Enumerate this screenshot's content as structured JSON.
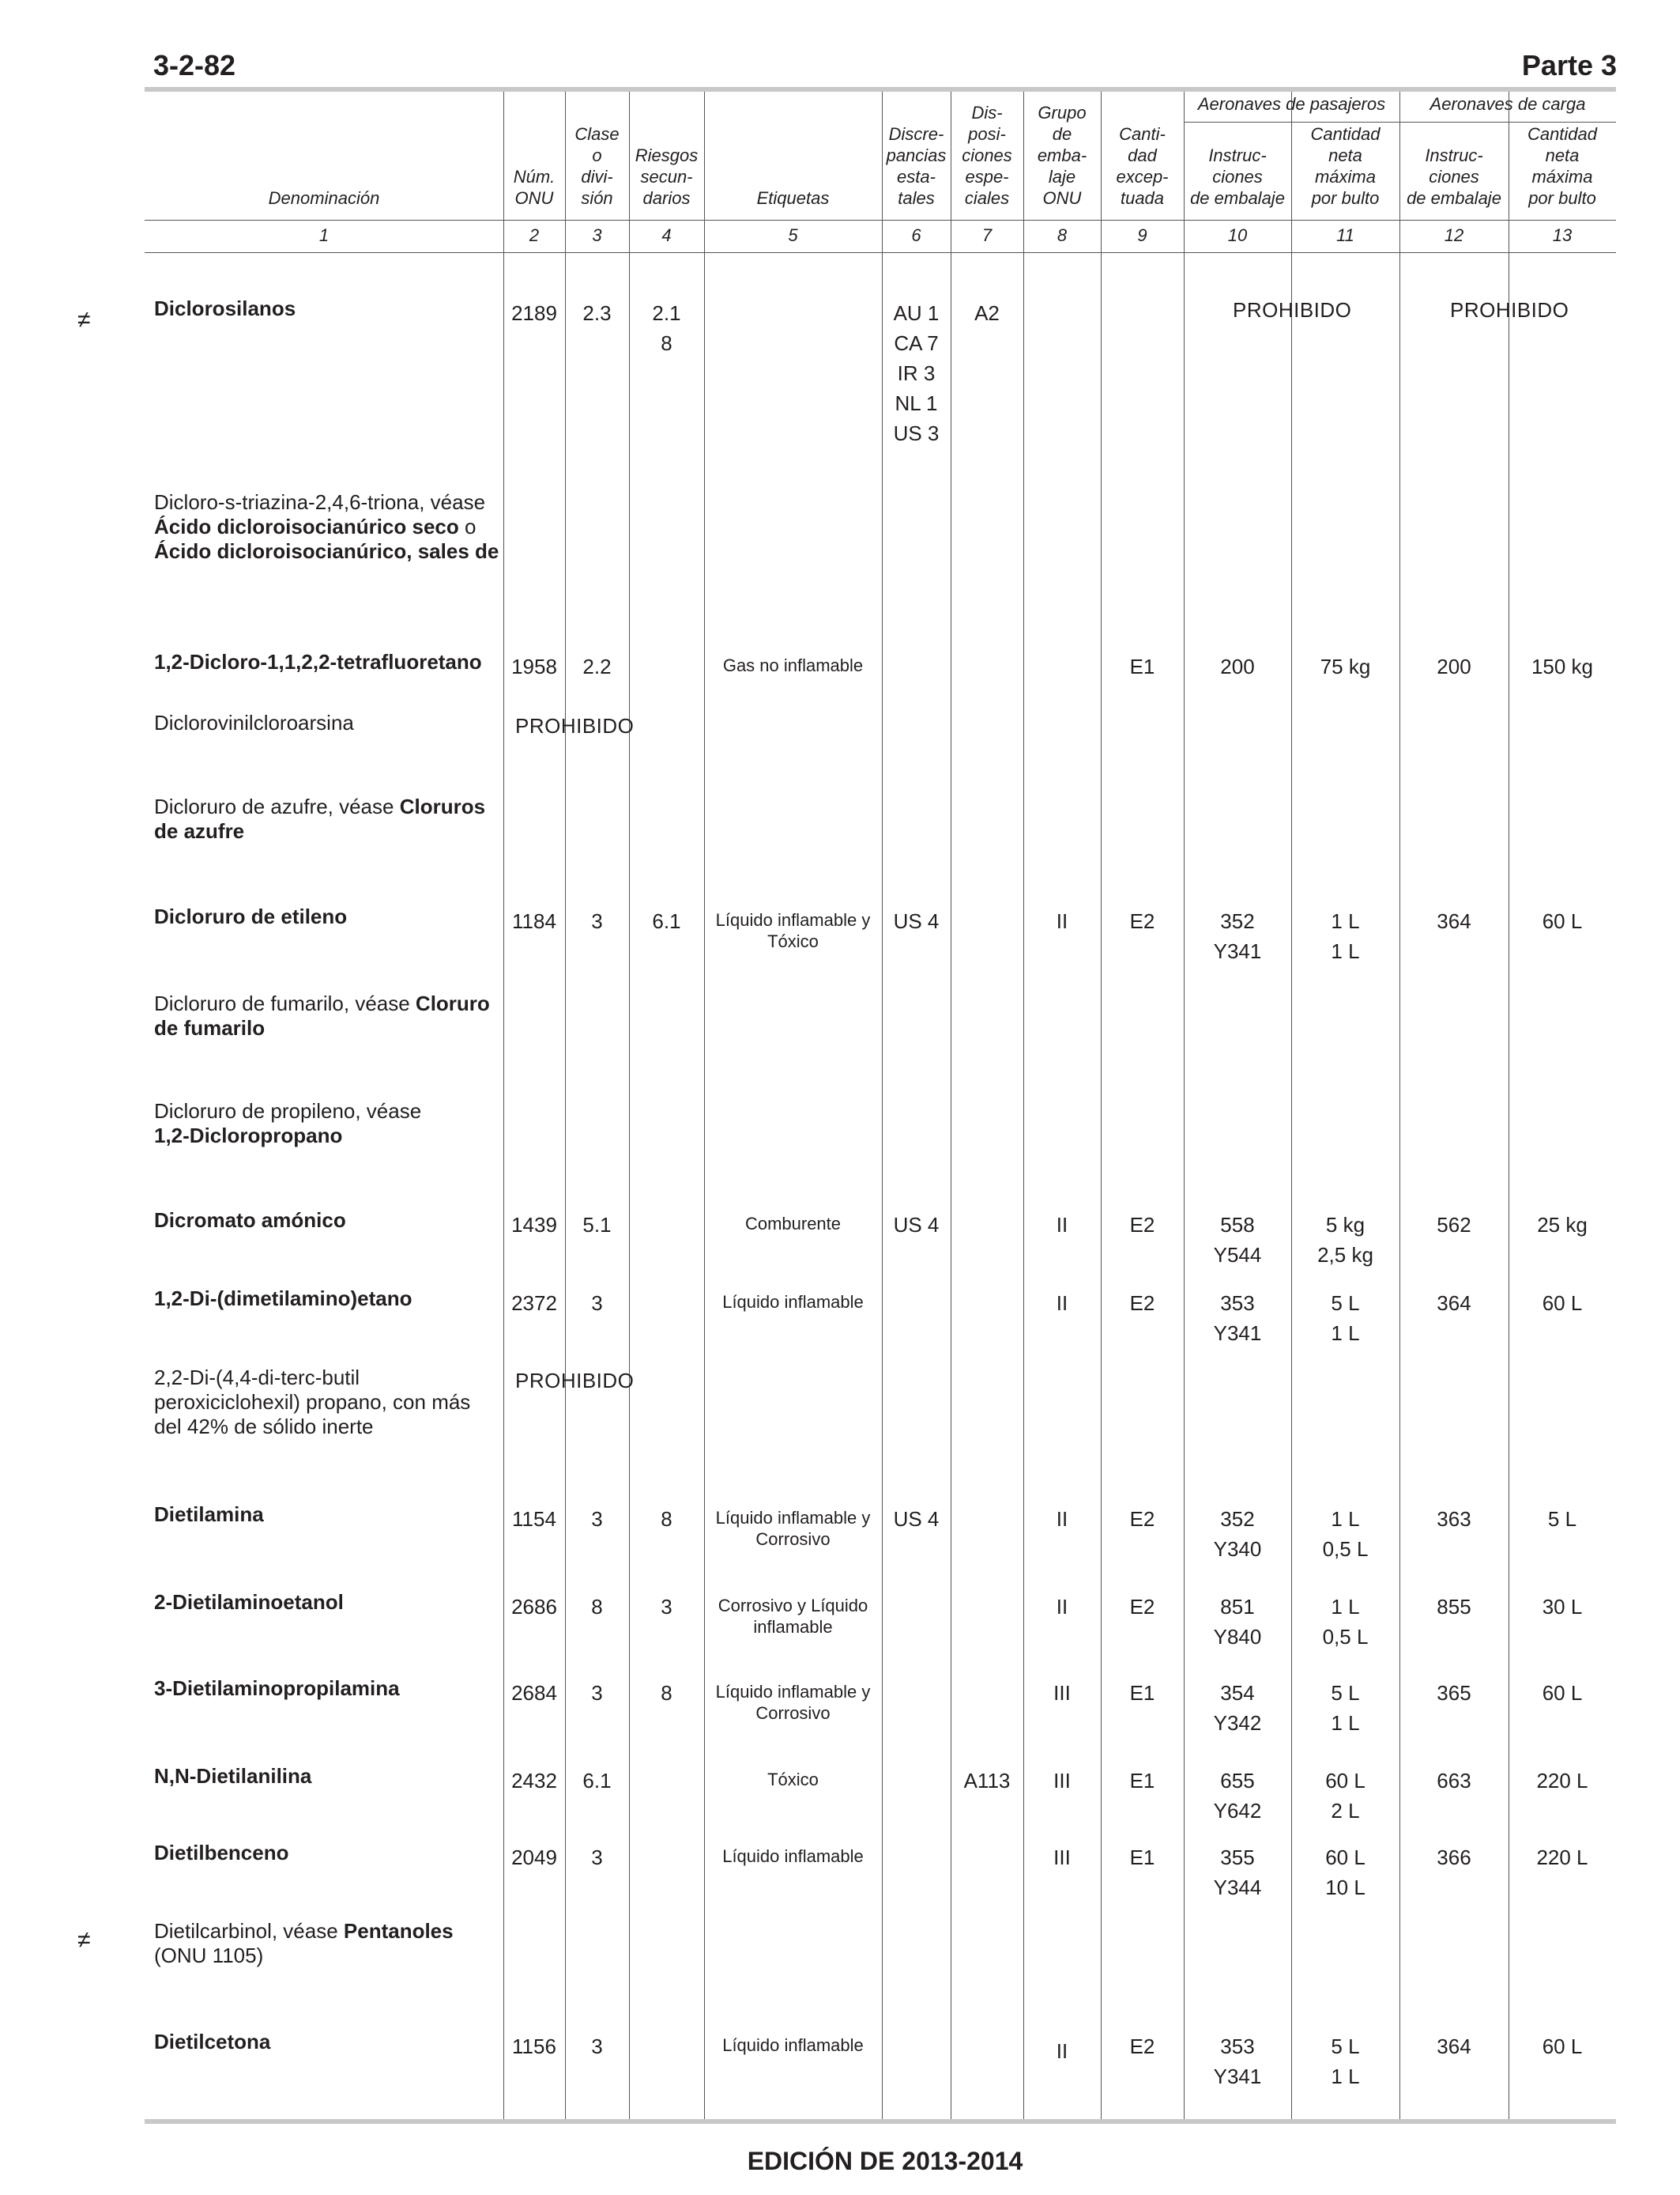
{
  "header": {
    "page_number": "3-2-82",
    "part": "Parte 3"
  },
  "footer": {
    "edition": "EDICIÓN DE 2013-2014"
  },
  "column_headers": {
    "group_passenger": "Aeronaves de pasajeros",
    "group_cargo": "Aeronaves de carga",
    "c1": "Denominación",
    "c2": "Núm.\nONU",
    "c3": "Clase\no\ndivi-\nsión",
    "c4": "Riesgos\nsecun-\ndarios",
    "c5": "Etiquetas",
    "c6": "Discre-\npancias\nesta-\ntales",
    "c7": "Dis-\nposi-\nciones\nespe-\nciales",
    "c8": "Grupo\nde\nemba-\nlaje\nONU",
    "c9": "Canti-\ndad\nexcep-\ntuada",
    "c10": "Instruc-\nciones\nde embalaje",
    "c11": "Cantidad\nneta\nmáxima\npor bulto",
    "c12": "Instruc-\nciones\nde embalaje",
    "c13": "Cantidad\nneta\nmáxima\npor bulto"
  },
  "column_numbers": [
    "1",
    "2",
    "3",
    "4",
    "5",
    "6",
    "7",
    "8",
    "9",
    "10",
    "11",
    "12",
    "13"
  ],
  "rows": {
    "r1": {
      "mark": "≠",
      "name": "Diclorosilanos",
      "onu": "2189",
      "clase": "2.3",
      "riesgos": "2.1\n8",
      "discrepancias": "AU 1\nCA 7\nIR 3\nNL 1\nUS 3",
      "disposiciones": "A2",
      "prohibido_pax": "PROHIBIDO",
      "prohibido_carga": "PROHIBIDO"
    },
    "r2": {
      "name_plain": "Dicloro-s-triazina-2,4,6-triona, véase",
      "name_bold": "Ácido dicloroisocianúrico seco",
      "name_mid": " o",
      "name_bold2": "Ácido dicloroisocianúrico, sales de"
    },
    "r3": {
      "name": "1,2-Dicloro-1,1,2,2-tetrafluoretano",
      "onu": "1958",
      "clase": "2.2",
      "etiquetas": "Gas no inflamable",
      "cant_excep": "E1",
      "pax_instr": "200",
      "pax_cant": "75 kg",
      "carga_instr": "200",
      "carga_cant": "150 kg"
    },
    "r4": {
      "name": "Diclorovinilcloroarsina",
      "prohibido": "PROHIBIDO"
    },
    "r5": {
      "name_plain": "Dicloruro de azufre, véase ",
      "name_bold": "Cloruros de azufre"
    },
    "r6": {
      "name": "Dicloruro de etileno",
      "onu": "1184",
      "clase": "3",
      "riesgos": "6.1",
      "etiquetas": "Líquido inflamable y Tóxico",
      "discrepancias": "US 4",
      "grupo": "II",
      "cant_excep": "E2",
      "pax_instr": "352\nY341",
      "pax_cant": "1 L\n1 L",
      "carga_instr": "364",
      "carga_cant": "60 L"
    },
    "r7": {
      "name_plain": "Dicloruro de fumarilo, véase ",
      "name_bold": "Cloruro de fumarilo"
    },
    "r8": {
      "name_plain": "Dicloruro de propileno, véase",
      "name_bold": "1,2-Dicloropropano"
    },
    "r9": {
      "name": "Dicromato amónico",
      "onu": "1439",
      "clase": "5.1",
      "etiquetas": "Comburente",
      "discrepancias": "US 4",
      "grupo": "II",
      "cant_excep": "E2",
      "pax_instr": "558\nY544",
      "pax_cant": "5 kg\n2,5 kg",
      "carga_instr": "562",
      "carga_cant": "25 kg"
    },
    "r10": {
      "name": "1,2-Di-(dimetilamino)etano",
      "onu": "2372",
      "clase": "3",
      "etiquetas": "Líquido inflamable",
      "grupo": "II",
      "cant_excep": "E2",
      "pax_instr": "353\nY341",
      "pax_cant": "5 L\n1 L",
      "carga_instr": "364",
      "carga_cant": "60 L"
    },
    "r11": {
      "name": "2,2-Di-(4,4-di-terc-butil peroxiciclohexil) propano, con más del 42% de sólido inerte",
      "prohibido": "PROHIBIDO"
    },
    "r12": {
      "name": "Dietilamina",
      "onu": "1154",
      "clase": "3",
      "riesgos": "8",
      "etiquetas": "Líquido inflamable y Corrosivo",
      "discrepancias": "US 4",
      "grupo": "II",
      "cant_excep": "E2",
      "pax_instr": "352\nY340",
      "pax_cant": "1 L\n0,5 L",
      "carga_instr": "363",
      "carga_cant": "5 L"
    },
    "r13": {
      "name": "2-Dietilaminoetanol",
      "onu": "2686",
      "clase": "8",
      "riesgos": "3",
      "etiquetas": "Corrosivo y Líquido inflamable",
      "grupo": "II",
      "cant_excep": "E2",
      "pax_instr": "851\nY840",
      "pax_cant": "1 L\n0,5 L",
      "carga_instr": "855",
      "carga_cant": "30 L"
    },
    "r14": {
      "name": "3-Dietilaminopropilamina",
      "onu": "2684",
      "clase": "3",
      "riesgos": "8",
      "etiquetas": "Líquido inflamable y Corrosivo",
      "grupo": "III",
      "cant_excep": "E1",
      "pax_instr": "354\nY342",
      "pax_cant": "5 L\n1 L",
      "carga_instr": "365",
      "carga_cant": "60 L"
    },
    "r15": {
      "name": "N,N-Dietilanilina",
      "onu": "2432",
      "clase": "6.1",
      "etiquetas": "Tóxico",
      "disposiciones": "A113",
      "grupo": "III",
      "cant_excep": "E1",
      "pax_instr": "655\nY642",
      "pax_cant": "60 L\n2 L",
      "carga_instr": "663",
      "carga_cant": "220 L"
    },
    "r16": {
      "name": "Dietilbenceno",
      "onu": "2049",
      "clase": "3",
      "etiquetas": "Líquido inflamable",
      "grupo": "III",
      "cant_excep": "E1",
      "pax_instr": "355\nY344",
      "pax_cant": "60 L\n10 L",
      "carga_instr": "366",
      "carga_cant": "220 L"
    },
    "r17": {
      "mark": "≠",
      "name_plain": "Dietilcarbinol, véase ",
      "name_bold": "Pentanoles",
      "name_tail": "(ONU 1105)"
    },
    "r18": {
      "name": "Dietilcetona",
      "onu": "1156",
      "clase": "3",
      "etiquetas": "Líquido inflamable",
      "grupo": "II",
      "cant_excep": "E2",
      "pax_instr": "353\nY341",
      "pax_cant": "5 L\n1 L",
      "carga_instr": "364",
      "carga_cant": "60 L"
    }
  }
}
